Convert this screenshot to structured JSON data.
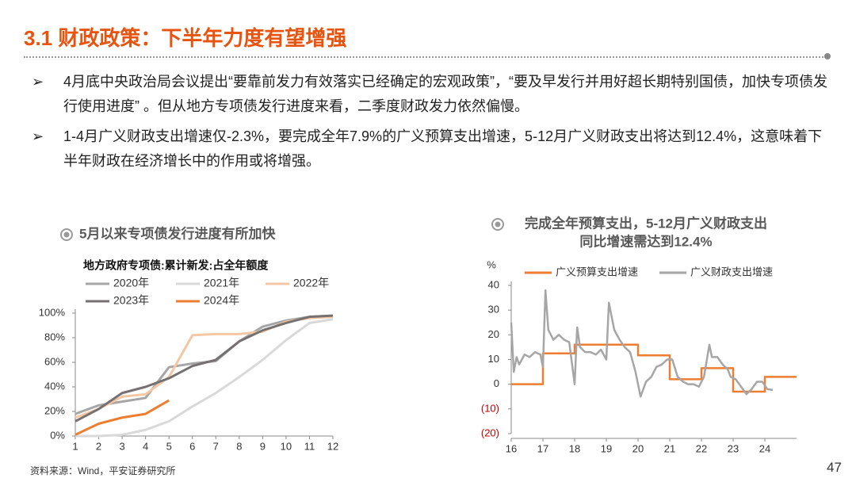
{
  "header": {
    "title": "3.1 财政政策：下半年力度有望增强"
  },
  "bullets": [
    "4月底中央政治局会议提出“要靠前发力有效落实已经确定的宏观政策”，“要及早发行并用好超长期特别国债，加快专项债发行使用进度” 。但从地方专项债发行进度来看，二季度财政发力依然偏慢。",
    "1-4月广义财政支出增速仅-2.3%，要完成全年7.9%的广义预算支出增速，5-12月广义财政支出将达到12.4%，这意味着下半年财政在经济增长中的作用或将增强。"
  ],
  "chart_data": [
    {
      "type": "line",
      "title": [
        "5月以来专项债发行进度有所加快"
      ],
      "subtitle": "地方政府专项债:累计新发:占全年额度",
      "x": [
        1,
        2,
        3,
        4,
        5,
        6,
        7,
        8,
        9,
        10,
        11,
        12
      ],
      "xlim": [
        1,
        12
      ],
      "xticks": [
        1,
        2,
        3,
        4,
        5,
        6,
        7,
        8,
        9,
        10,
        11,
        12
      ],
      "ylim": [
        0,
        100
      ],
      "yticks": [
        {
          "value": 0,
          "label": "0%"
        },
        {
          "value": 20,
          "label": "20%"
        },
        {
          "value": 40,
          "label": "40%"
        },
        {
          "value": 60,
          "label": "60%"
        },
        {
          "value": 80,
          "label": "80%"
        },
        {
          "value": 100,
          "label": "100%"
        }
      ],
      "series": [
        {
          "name": "2020年",
          "color": "#a6a6a6",
          "values": [
            18,
            25,
            28,
            31,
            56,
            59,
            61,
            77,
            89,
            94,
            97,
            98
          ]
        },
        {
          "name": "2021年",
          "color": "#d9d9d9",
          "values": [
            0,
            0,
            1,
            5,
            12,
            24,
            35,
            48,
            62,
            78,
            92,
            95
          ]
        },
        {
          "name": "2022年",
          "color": "#f4c7a4",
          "values": [
            15,
            22,
            32,
            34,
            48,
            82,
            83,
            83,
            85,
            93,
            96,
            97
          ]
        },
        {
          "name": "2023年",
          "color": "#767171",
          "values": [
            12,
            22,
            35,
            40,
            47,
            57,
            62,
            77,
            86,
            92,
            97,
            98
          ]
        },
        {
          "name": "2024年",
          "color": "#ed7d31",
          "values": [
            1,
            10,
            15,
            18,
            29,
            null,
            null,
            null,
            null,
            null,
            null,
            null
          ]
        }
      ]
    },
    {
      "type": "line",
      "title": [
        "完成全年预算支出，5-12月广义财政支出",
        "同比增速需达到12.4%"
      ],
      "ylabel": "%",
      "xlim": [
        2016,
        2025
      ],
      "xticks": [
        {
          "value": 2016,
          "label": "16"
        },
        {
          "value": 2017,
          "label": "17"
        },
        {
          "value": 2018,
          "label": "18"
        },
        {
          "value": 2019,
          "label": "19"
        },
        {
          "value": 2020,
          "label": "20"
        },
        {
          "value": 2021,
          "label": "21"
        },
        {
          "value": 2022,
          "label": "22"
        },
        {
          "value": 2023,
          "label": "23"
        },
        {
          "value": 2024,
          "label": "24"
        }
      ],
      "ylim": [
        -20,
        40
      ],
      "yticks": [
        40,
        30,
        20,
        10,
        0,
        {
          "value": -10,
          "label": "(10)"
        },
        {
          "value": -20,
          "label": "(20)"
        }
      ],
      "negative_tick_color": "#c00000",
      "series": [
        {
          "name": "广义预算支出增速",
          "color": "#ed7d31",
          "x": [
            2016,
            2017,
            2017,
            2018,
            2018,
            2020,
            2020,
            2021,
            2021,
            2022,
            2022,
            2023,
            2023,
            2024,
            2024,
            2025
          ],
          "values": [
            0,
            0,
            12.5,
            12.5,
            16,
            16,
            11.7,
            11.7,
            2,
            2,
            6.5,
            6.5,
            -3,
            -3,
            3,
            3
          ]
        },
        {
          "name": "广义财政支出增速",
          "color": "#a6a6a6",
          "x": [
            2016.0,
            2016.08,
            2016.17,
            2016.25,
            2016.42,
            2016.58,
            2016.75,
            2016.92,
            2017.0,
            2017.08,
            2017.17,
            2017.33,
            2017.5,
            2017.67,
            2017.83,
            2017.92,
            2018.0,
            2018.08,
            2018.17,
            2018.33,
            2018.5,
            2018.67,
            2018.83,
            2019.0,
            2019.08,
            2019.25,
            2019.42,
            2019.58,
            2019.75,
            2019.92,
            2020.08,
            2020.25,
            2020.42,
            2020.58,
            2020.75,
            2020.92,
            2021.08,
            2021.25,
            2021.42,
            2021.58,
            2021.75,
            2021.92,
            2022.08,
            2022.25,
            2022.33,
            2022.5,
            2022.67,
            2022.83,
            2022.92,
            2023.08,
            2023.25,
            2023.42,
            2023.58,
            2023.75,
            2023.92,
            2024.08,
            2024.25
          ],
          "values": [
            25,
            5,
            11,
            8,
            12,
            11,
            13,
            12,
            7,
            38,
            22,
            18,
            20,
            18,
            17,
            8,
            0,
            23,
            15,
            13,
            13,
            12,
            14,
            10,
            33,
            22,
            18,
            15,
            13,
            5,
            -5,
            1,
            3,
            7,
            8,
            10,
            10,
            3,
            1,
            0,
            0,
            -1,
            3,
            16,
            11,
            11,
            8,
            6,
            3,
            2,
            -1,
            -4,
            -2,
            1,
            1,
            -2,
            -2.3
          ]
        }
      ]
    }
  ],
  "source": "资料来源：Wind，平安证券研究所",
  "page_number": 47
}
